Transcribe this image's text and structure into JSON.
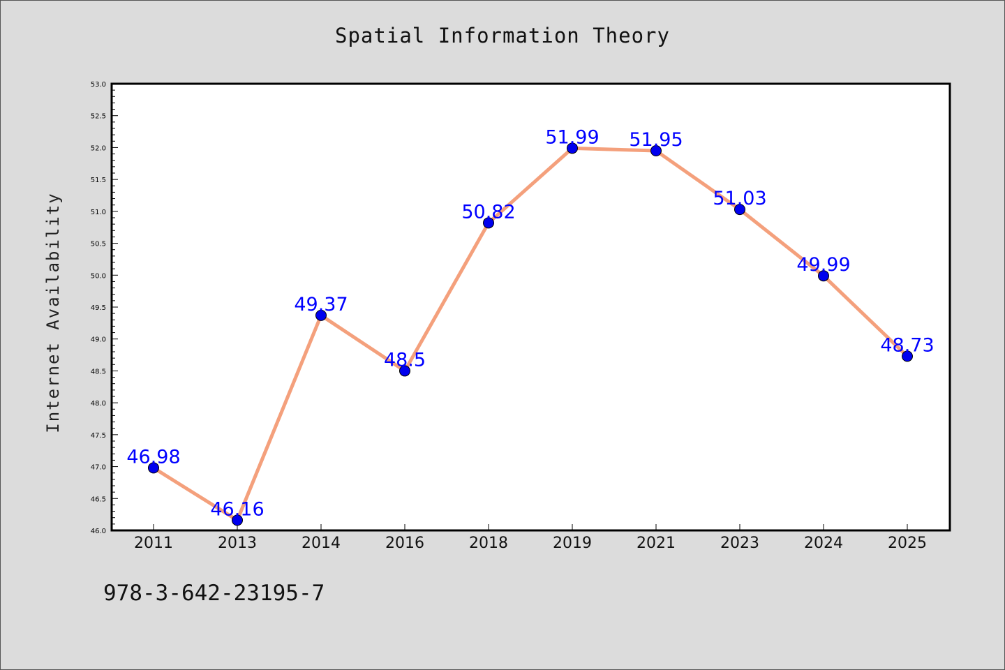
{
  "chart_data": {
    "type": "line",
    "title": "Spatial Information Theory",
    "xlabel": "",
    "ylabel": "Internet Availability",
    "categories": [
      "2011",
      "2013",
      "2014",
      "2016",
      "2018",
      "2019",
      "2021",
      "2023",
      "2024",
      "2025"
    ],
    "series": [
      {
        "values": [
          46.98,
          46.16,
          49.37,
          48.5,
          50.82,
          51.99,
          51.95,
          51.03,
          49.99,
          48.73
        ],
        "data_labels": [
          "46.98",
          "46.16",
          "49.37",
          "48.5",
          "50.82",
          "51.99",
          "51.95",
          "51.03",
          "49.99",
          "48.73"
        ]
      }
    ],
    "ylim": [
      46.0,
      53.0
    ],
    "yticks": [
      "46.0",
      "46.5",
      "47.0",
      "47.5",
      "48.0",
      "48.5",
      "49.0",
      "49.5",
      "50.0",
      "50.5",
      "51.0",
      "51.5",
      "52.0",
      "52.5",
      "53.0"
    ],
    "grid": false,
    "legend": "none",
    "colors": {
      "line": "#f4a07c",
      "marker": "#0000ee",
      "data_label": "#0000ff",
      "background": "#dcdcdc",
      "plot_area": "#ffffff"
    }
  },
  "footer": {
    "text": "978-3-642-23195-7"
  }
}
